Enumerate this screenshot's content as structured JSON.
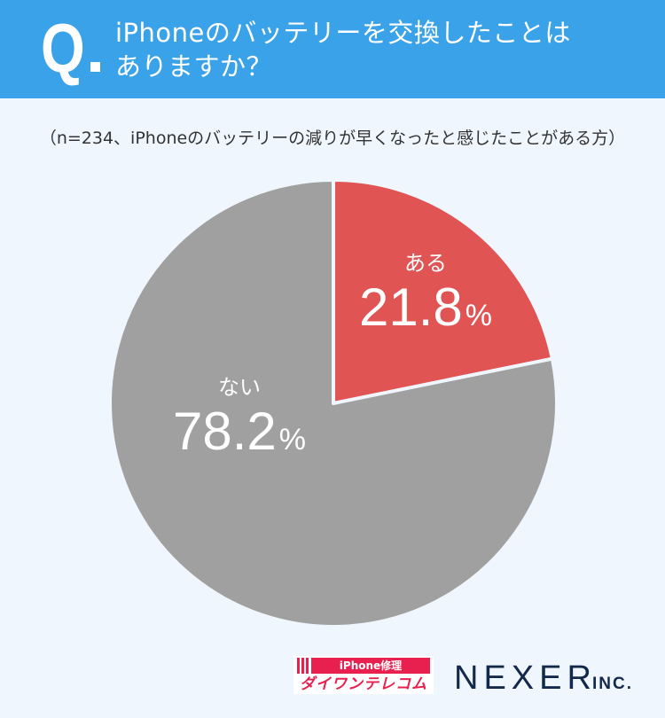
{
  "header": {
    "q_mark": "Q",
    "title_line1": "iPhoneのバッテリーを交換したことは",
    "title_line2": "ありますか？",
    "bg_color": "#3aa2e8"
  },
  "subtitle": "（n=234、iPhoneのバッテリーの減りが早くなったと感じたことがある方）",
  "chart_data": {
    "type": "pie",
    "title": "iPhoneのバッテリーを交換したことはありますか？",
    "subtitle": "（n=234、iPhoneのバッテリーの減りが早くなったと感じたことがある方）",
    "categories": [
      "ある",
      "ない"
    ],
    "values": [
      21.8,
      78.2
    ],
    "unit": "%",
    "colors": [
      "#e05454",
      "#a0a0a0"
    ],
    "start_angle": "12 o'clock, clockwise",
    "n": 234
  },
  "labels": {
    "yes": {
      "name": "ある",
      "value": "21.8",
      "unit": "%"
    },
    "no": {
      "name": "ない",
      "value": "78.2",
      "unit": "%"
    }
  },
  "logos": {
    "daiwan_top": "iPhone修理",
    "daiwan_bottom": "ダイワンテレコム",
    "nexer": "NEXER",
    "nexer_suffix": "INC."
  }
}
